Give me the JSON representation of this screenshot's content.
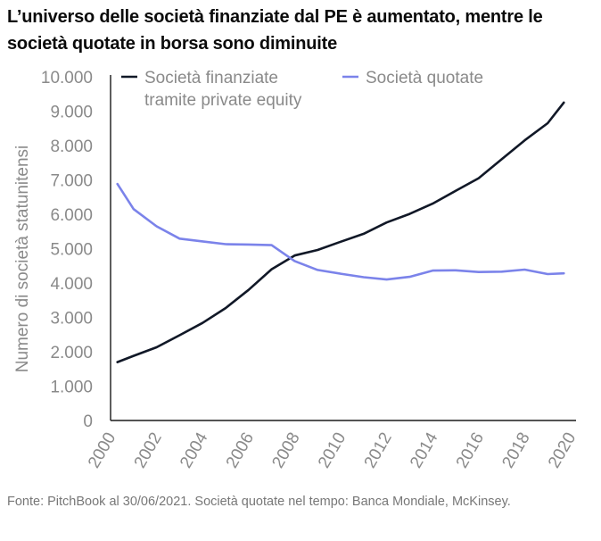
{
  "title": "L’universo delle società finanziate dal PE è aumentato, mentre le società quotate in borsa sono diminuite",
  "source": "Fonte: PitchBook al 30/06/2021. Società quotate nel tempo: Banca Mondiale, McKinsey.",
  "chart_data": {
    "type": "line",
    "title": "L’universo delle società finanziate dal PE è aumentato, mentre le società quotate in borsa sono diminuite",
    "xlabel": "",
    "ylabel": "Numero di società statunitensi",
    "ylim": [
      0,
      10000
    ],
    "xlim": [
      2000,
      2020
    ],
    "yticks": [
      0,
      1000,
      2000,
      3000,
      4000,
      5000,
      6000,
      7000,
      8000,
      9000,
      10000
    ],
    "ytick_labels": [
      "0",
      "1.000",
      "2.000",
      "3.000",
      "4.000",
      "5.000",
      "6.000",
      "7.000",
      "8.000",
      "9.000",
      "10.000"
    ],
    "xticks": [
      2000,
      2002,
      2004,
      2006,
      2008,
      2010,
      2012,
      2014,
      2016,
      2018,
      2020
    ],
    "xtick_labels": [
      "2000",
      "2002",
      "2004",
      "2006",
      "2008",
      "2010",
      "2012",
      "2014",
      "2016",
      "2018",
      "2020"
    ],
    "legend_position": "top",
    "series": [
      {
        "name": "Società finanziate tramite private equity",
        "legend_lines": [
          "Società finanziate",
          "tramite private equity"
        ],
        "color": "#111827",
        "x": [
          2000.3,
          2001,
          2002,
          2003,
          2004,
          2005,
          2006,
          2007,
          2008,
          2009,
          2010,
          2011,
          2012,
          2013,
          2014,
          2015,
          2016,
          2017,
          2018,
          2019,
          2019.7
        ],
        "values": [
          1700,
          1880,
          2130,
          2480,
          2840,
          3270,
          3800,
          4400,
          4800,
          4960,
          5200,
          5430,
          5760,
          6010,
          6310,
          6680,
          7050,
          7600,
          8150,
          8650,
          9250
        ]
      },
      {
        "name": "Società quotate",
        "legend_lines": [
          "Società quotate"
        ],
        "color": "#7b83ea",
        "x": [
          2000.3,
          2001,
          2002,
          2003,
          2004,
          2005,
          2006,
          2007,
          2008,
          2009,
          2010,
          2011,
          2012,
          2013,
          2014,
          2015,
          2016,
          2017,
          2018,
          2019,
          2019.7
        ],
        "values": [
          6880,
          6150,
          5650,
          5290,
          5210,
          5130,
          5120,
          5100,
          4640,
          4380,
          4270,
          4170,
          4100,
          4180,
          4360,
          4370,
          4320,
          4330,
          4390,
          4260,
          4280
        ]
      }
    ]
  }
}
